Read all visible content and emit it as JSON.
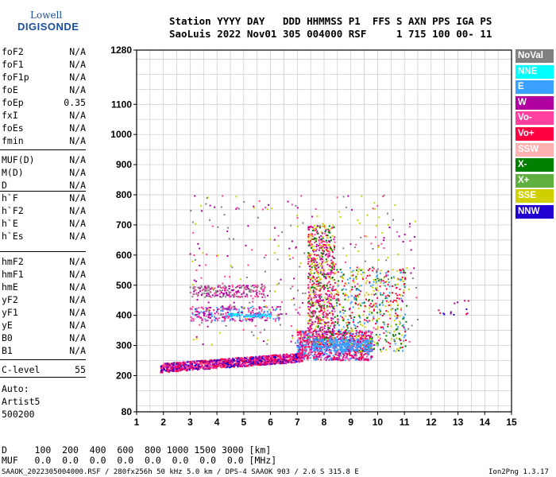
{
  "logo": {
    "line1": "Lowell",
    "line2": "DIGISONDE"
  },
  "header": {
    "row1": "Station YYYY DAY   DDD HHMMSS P1  FFS S AXN PPS IGA PS",
    "row2": "SaoLuis 2022 Nov01 305 004000 RSF     1 715 100 00- 11"
  },
  "params": [
    {
      "label": "foF2",
      "value": "N/A"
    },
    {
      "label": "foF1",
      "value": "N/A"
    },
    {
      "label": "foF1p",
      "value": "N/A"
    },
    {
      "label": "foE",
      "value": "N/A"
    },
    {
      "label": "foEp",
      "value": "0.35"
    },
    {
      "label": "fxI",
      "value": "N/A"
    },
    {
      "label": "foEs",
      "value": "N/A"
    },
    {
      "label": "fmin",
      "value": "N/A"
    },
    {
      "label": "MUF(D)",
      "value": "N/A"
    },
    {
      "label": "M(D)",
      "value": "N/A"
    },
    {
      "label": "D",
      "value": "N/A"
    },
    {
      "label": "h`F",
      "value": "N/A"
    },
    {
      "label": "h`F2",
      "value": "N/A"
    },
    {
      "label": "h`E",
      "value": "N/A"
    },
    {
      "label": "h`Es",
      "value": "N/A"
    },
    {
      "label": "hmF2",
      "value": "N/A"
    },
    {
      "label": "hmF1",
      "value": "N/A"
    },
    {
      "label": "hmE",
      "value": "N/A"
    },
    {
      "label": "yF2",
      "value": "N/A"
    },
    {
      "label": "yF1",
      "value": "N/A"
    },
    {
      "label": "yE",
      "value": "N/A"
    },
    {
      "label": "B0",
      "value": "N/A"
    },
    {
      "label": "B1",
      "value": "N/A"
    },
    {
      "label": "C-level",
      "value": "55"
    }
  ],
  "auto": {
    "line1": "Auto:",
    "line2": "Artist5",
    "line3": "500200"
  },
  "legend": [
    {
      "label": "NoVal",
      "color": "#808080"
    },
    {
      "label": "NNE",
      "color": "#00ffff"
    },
    {
      "label": "E",
      "color": "#3aa0ff"
    },
    {
      "label": "W",
      "color": "#b000a0"
    },
    {
      "label": "Vo-",
      "color": "#ff40a0"
    },
    {
      "label": "Vo+",
      "color": "#ff0040"
    },
    {
      "label": "SSW",
      "color": "#ffb0b0"
    },
    {
      "label": "X-",
      "color": "#008000"
    },
    {
      "label": "X+",
      "color": "#60b040"
    },
    {
      "label": "SSE",
      "color": "#d0d000"
    },
    {
      "label": "NNW",
      "color": "#2000d0"
    }
  ],
  "muf_table": {
    "row1": "D     100  200  400  600  800 1000 1500 3000 [km]",
    "row2": "MUF   0.0  0.0  0.0  0.0  0.0  0.0  0.0  0.0 [MHz]"
  },
  "footer": {
    "left": "SAAOK_2022305004000.RSF / 280fx256h 50 kHz 5.0 km / DPS-4 SAAOK 903 / 2.6 S 315.8 E",
    "right": "Ion2Png 1.3.17"
  },
  "chart_data": {
    "type": "scatter",
    "x_range": [
      1,
      15
    ],
    "y_range": [
      80,
      1280
    ],
    "x_ticks": [
      "1",
      "2",
      "3",
      "4",
      "5",
      "6",
      "7",
      "8",
      "9",
      "10",
      "11",
      "12",
      "13",
      "14",
      "15"
    ],
    "y_ticks": [
      {
        "v": 80,
        "label": "80"
      },
      {
        "v": 200,
        "label": "200"
      },
      {
        "v": 300,
        "label": "300"
      },
      {
        "v": 400,
        "label": "400"
      },
      {
        "v": 500,
        "label": "500"
      },
      {
        "v": 600,
        "label": "600"
      },
      {
        "v": 700,
        "label": "700"
      },
      {
        "v": 800,
        "label": "800"
      },
      {
        "v": 900,
        "label": "900"
      },
      {
        "v": 1000,
        "label": "1000"
      },
      {
        "v": 1100,
        "label": "1100"
      },
      {
        "v": 1280,
        "label": "1280"
      }
    ],
    "grid": true,
    "clusters": [
      {
        "name": "F-trace-low",
        "color_mix": [
          "#ff0040",
          "#b000a0",
          "#2000d0",
          "#ff40a0"
        ],
        "x": [
          1.9,
          7.2
        ],
        "y_start": 225,
        "y_end": 260,
        "count": 1300,
        "slope": true
      },
      {
        "name": "F-trace-mid",
        "color_mix": [
          "#ff0040",
          "#3aa0ff",
          "#ff40a0",
          "#b000a0"
        ],
        "x": [
          7.0,
          9.8
        ],
        "y": [
          250,
          350
        ],
        "count": 900
      },
      {
        "name": "O-band-400",
        "color_mix": [
          "#b000a0",
          "#ff40a0",
          "#3aa0ff"
        ],
        "x": [
          3.0,
          6.4
        ],
        "y": [
          380,
          430
        ],
        "count": 260
      },
      {
        "name": "O-band-480",
        "color_mix": [
          "#b000a0",
          "#ff40a0",
          "#808080"
        ],
        "x": [
          3.0,
          5.8
        ],
        "y": [
          460,
          500
        ],
        "count": 220
      },
      {
        "name": "spread-F-7.7",
        "color_mix": [
          "#ff0040",
          "#b000a0",
          "#008000",
          "#d0d000",
          "#ff40a0"
        ],
        "x": [
          7.4,
          8.4
        ],
        "y": [
          300,
          700
        ],
        "count": 700
      },
      {
        "name": "spread-F-9",
        "color_mix": [
          "#ff0040",
          "#008000",
          "#3aa0ff",
          "#d0d000"
        ],
        "x": [
          8.4,
          11.1
        ],
        "y": [
          280,
          560
        ],
        "count": 500
      },
      {
        "name": "E-bright",
        "color_mix": [
          "#3aa0ff"
        ],
        "x": [
          7.6,
          9.8
        ],
        "y": [
          280,
          320
        ],
        "count": 260
      },
      {
        "name": "scatter-high",
        "color_mix": [
          "#b000a0",
          "#ff40a0",
          "#808080",
          "#d0d000"
        ],
        "x": [
          3.0,
          11.5
        ],
        "y": [
          300,
          800
        ],
        "count": 350
      },
      {
        "name": "band-400-blue",
        "color_mix": [
          "#3aa0ff",
          "#00ffff"
        ],
        "x": [
          4.4,
          6.0
        ],
        "y": [
          395,
          405
        ],
        "count": 90
      },
      {
        "name": "far-points",
        "color_mix": [
          "#b000a0",
          "#ff0040",
          "#2000d0"
        ],
        "x": [
          12.0,
          13.5
        ],
        "y": [
          400,
          450
        ],
        "count": 14
      }
    ]
  }
}
